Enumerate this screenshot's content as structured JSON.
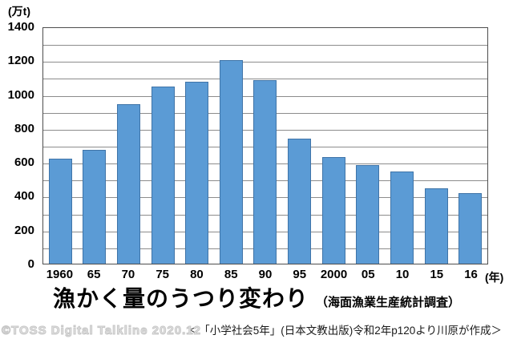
{
  "chart_data": {
    "type": "bar",
    "title": "漁かく量のうつり変わり",
    "subtitle": "（海面漁業生産統計調査）",
    "unit_label": "(万t)",
    "x_unit_label": "(年)",
    "categories": [
      "1960",
      "65",
      "70",
      "75",
      "80",
      "85",
      "90",
      "95",
      "2000",
      "05",
      "10",
      "15",
      "16"
    ],
    "values": [
      620,
      670,
      940,
      1045,
      1075,
      1200,
      1085,
      740,
      630,
      580,
      545,
      445,
      415
    ],
    "xlabel": "",
    "ylabel": "万t",
    "ylim": [
      0,
      1400
    ],
    "y_major_step": 200,
    "y_minor_step": 100,
    "y_tick_labels": [
      "0",
      "200",
      "400",
      "600",
      "800",
      "1000",
      "1200",
      "1400"
    ],
    "grid": true,
    "legend": false,
    "bar_fill_color": "#5b9bd5",
    "bar_border_color": "#3f74a8",
    "grid_color": "#8c8c8c",
    "frame_color": "#4d4d4d"
  },
  "title": {
    "main": "漁かく量のうつり変わり",
    "sub": "（海面漁業生産統計調査）"
  },
  "caption": {
    "source": "＜「小学社会5年」(日本文教出版)令和2年p120より川原が作成＞"
  },
  "watermark": "©TOSS  Digital Talkline 2020.12"
}
